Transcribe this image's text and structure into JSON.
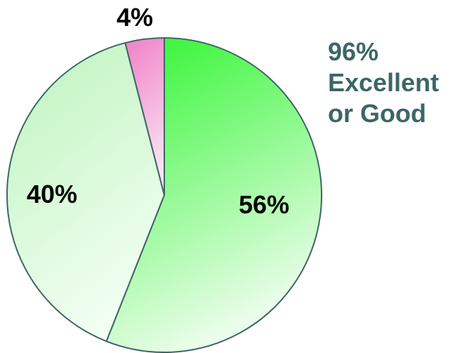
{
  "chart_data": {
    "type": "pie",
    "slices": [
      {
        "label": "56%",
        "value": 56,
        "color_start": "#2df52d",
        "color_end": "#eafdea"
      },
      {
        "label": "40%",
        "value": 40,
        "color_start": "#c2f5c2",
        "color_end": "#f6fff6"
      },
      {
        "label": "4%",
        "value": 4,
        "color_start": "#f080c8",
        "color_end": "#fbe4f2"
      }
    ],
    "start_angle_deg": 0,
    "direction": "clockwise",
    "edge_color": "#3d6666"
  },
  "annotation": {
    "lines": [
      "96%",
      "Excellent",
      "or Good"
    ],
    "color": "#3d6666"
  }
}
